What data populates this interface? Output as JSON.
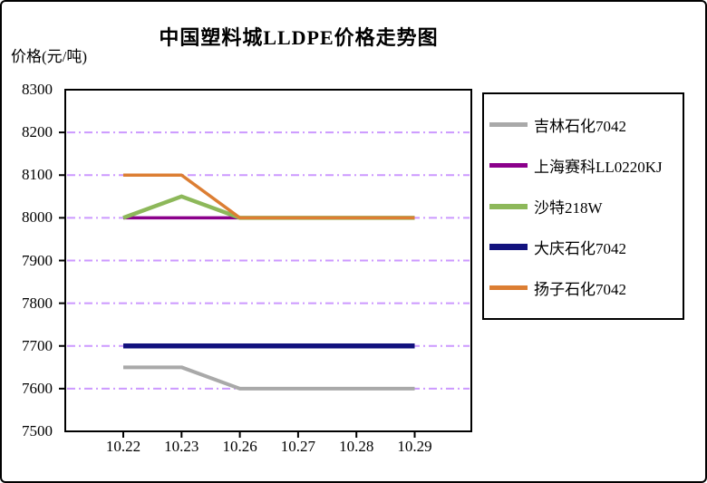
{
  "chart_data": {
    "type": "line",
    "title": "中国塑料城LLDPE价格走势图",
    "ylabel": "价格(元/吨)",
    "xlabel": "",
    "categories": [
      "10.22",
      "10.23",
      "10.26",
      "10.27",
      "10.28",
      "10.29"
    ],
    "series": [
      {
        "name": "吉林石化7042",
        "color": "#A9A9A9",
        "line_width": 4,
        "values": [
          7650,
          7650,
          7600,
          7600,
          7600,
          7600
        ]
      },
      {
        "name": "上海赛科LL0220KJ",
        "color": "#8B008B",
        "line_width": 3.5,
        "values": [
          8000,
          8000,
          8000,
          8000,
          8000,
          8000
        ]
      },
      {
        "name": "沙特218W",
        "color": "#8DB85A",
        "line_width": 4.5,
        "values": [
          8000,
          8050,
          8000,
          8000,
          8000,
          8000
        ]
      },
      {
        "name": "大庆石化7042",
        "color": "#12127E",
        "line_width": 5.5,
        "values": [
          7700,
          7700,
          7700,
          7700,
          7700,
          7700
        ]
      },
      {
        "name": "扬子石化7042",
        "color": "#DC7E33",
        "line_width": 3.5,
        "values": [
          8100,
          8100,
          8000,
          8000,
          8000,
          8000
        ]
      }
    ],
    "ylim": [
      7500,
      8300
    ],
    "ytick_step": 100,
    "grid": "horizontal",
    "grid_style": "dash-dot",
    "grid_color": "#CC99FF",
    "axis_color": "#000000",
    "legend_position": "right"
  }
}
